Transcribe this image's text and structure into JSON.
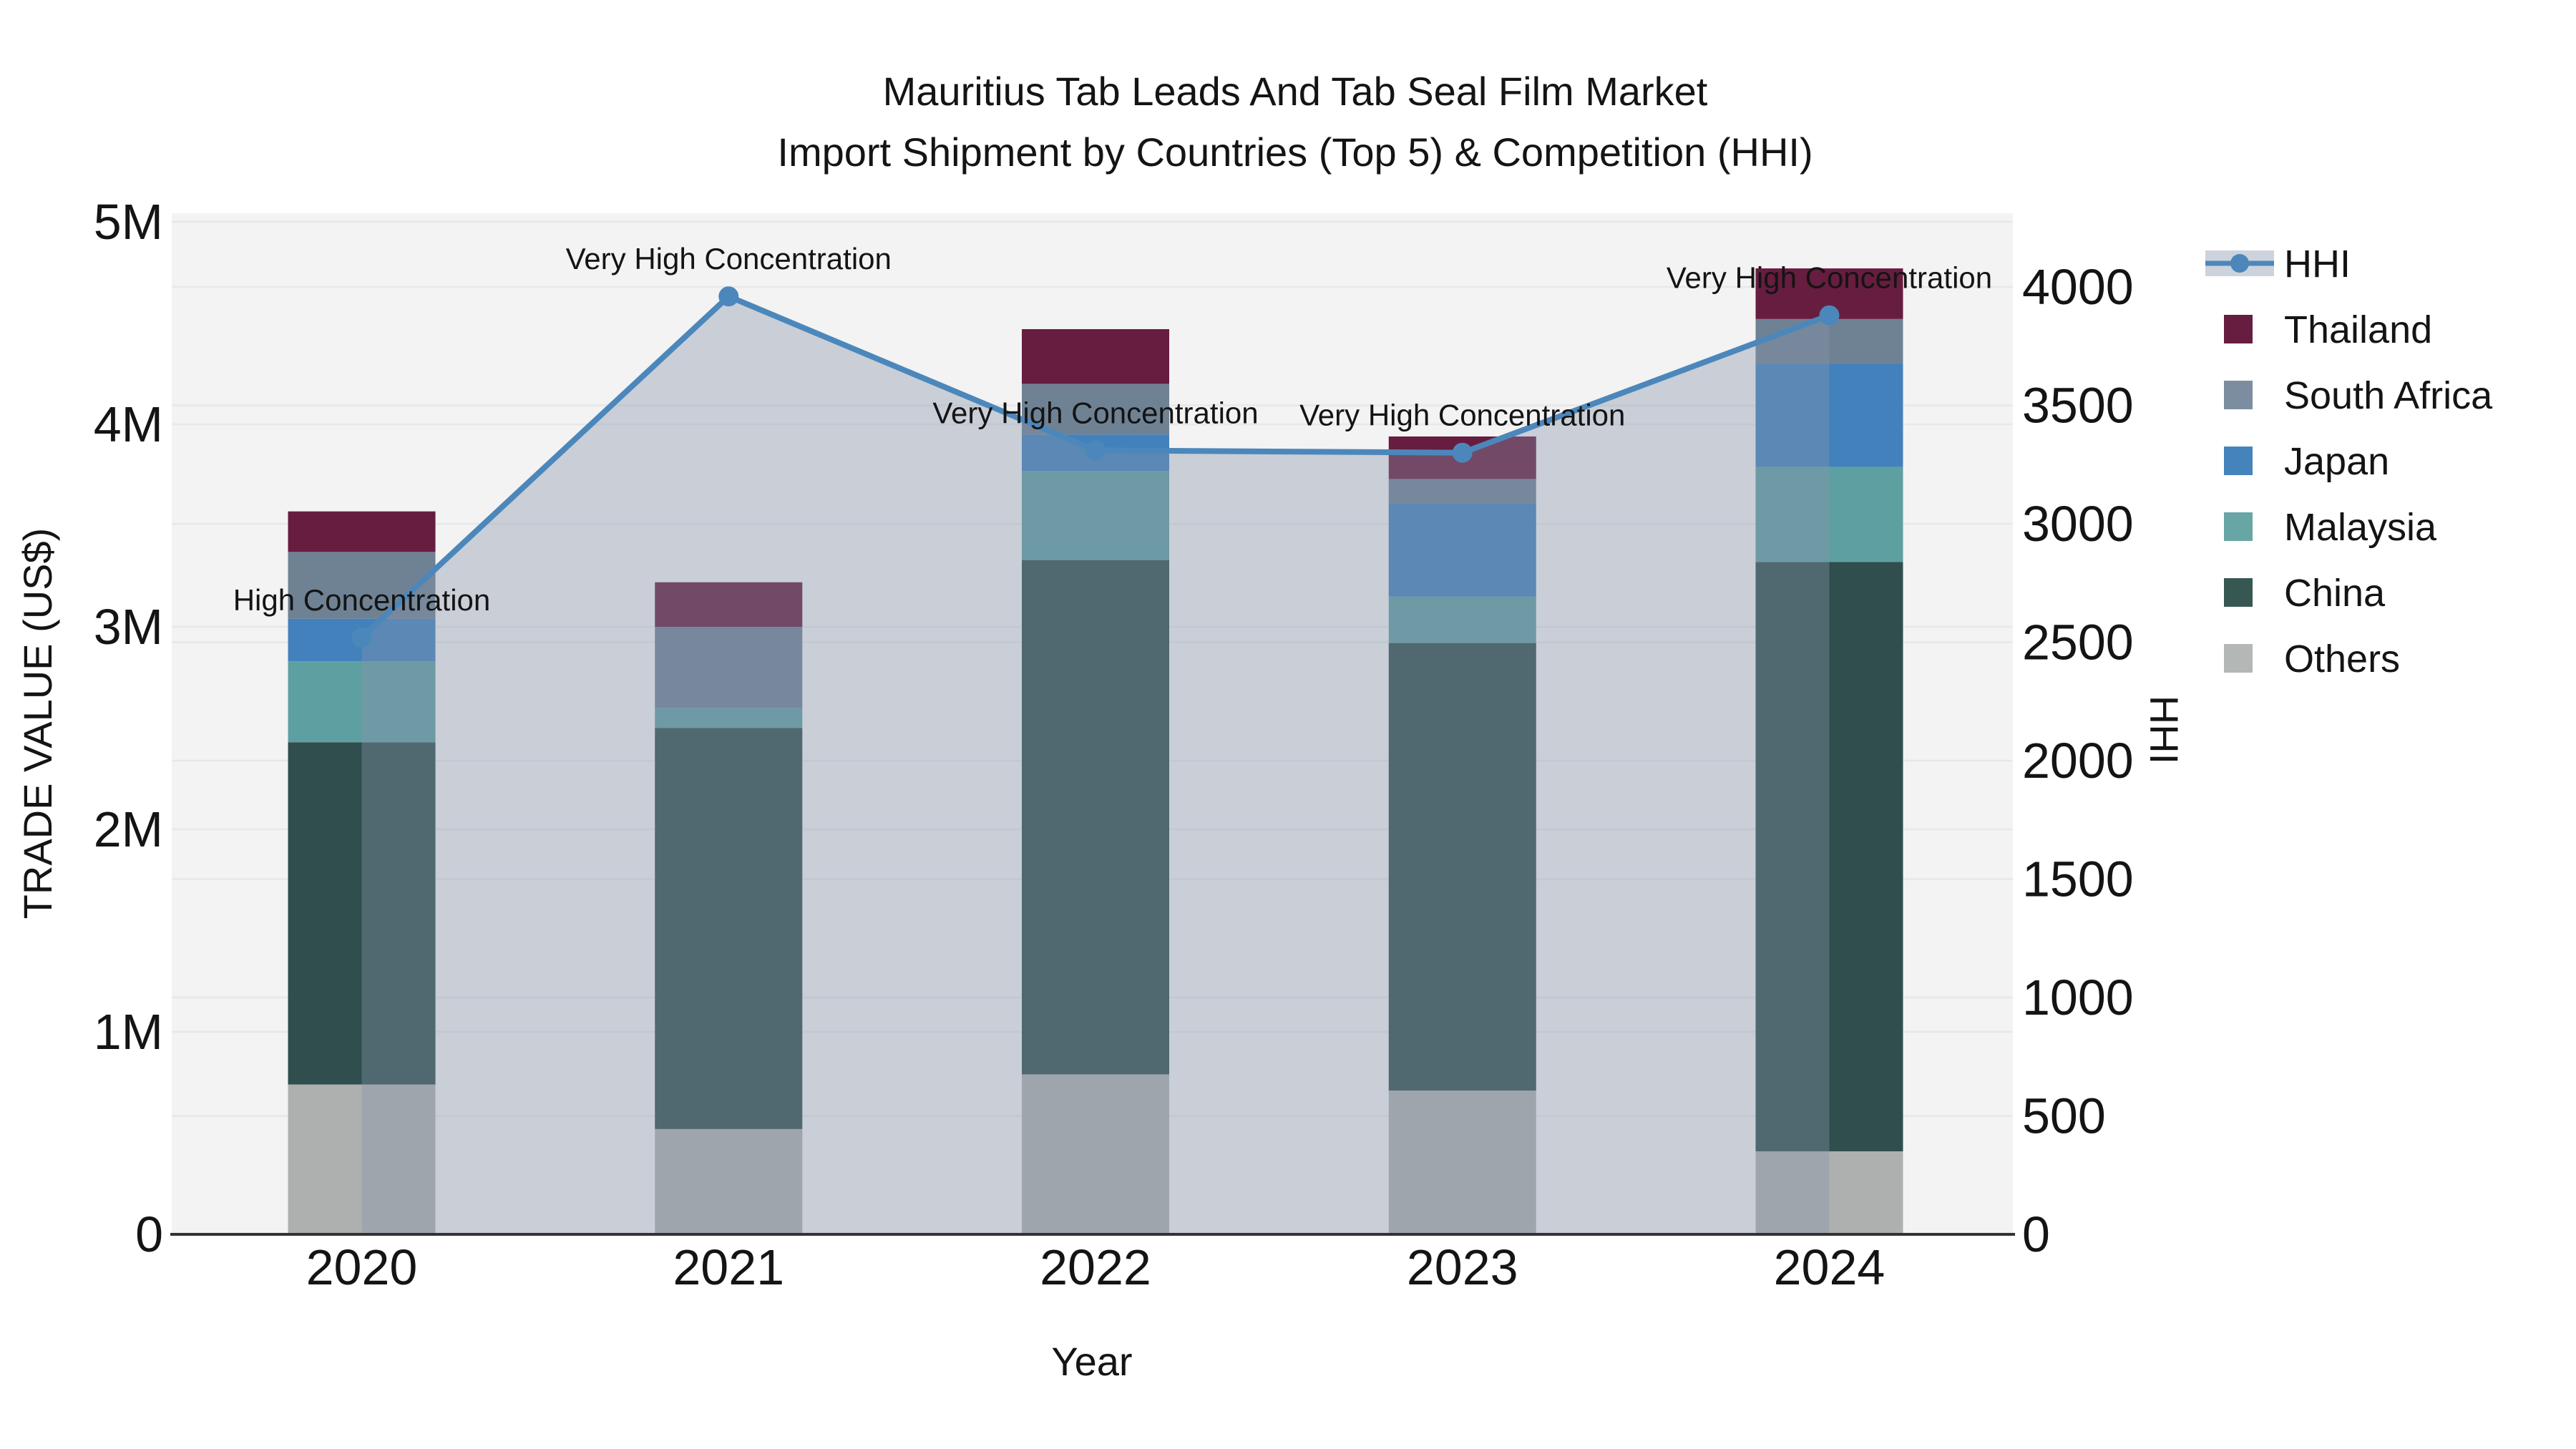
{
  "title": {
    "line1": "Mauritius Tab Leads And Tab Seal Film Market",
    "line2": "Import Shipment by Countries (Top 5) & Competition (HHI)"
  },
  "chart_data": {
    "type": "bar+line",
    "subtype": "stacked vertical bars (left axis) with HHI line + translucent area fill (right axis)",
    "categories": [
      "2020",
      "2021",
      "2022",
      "2023",
      "2024"
    ],
    "bar_value_unit": "US$ (trade value)",
    "series": [
      {
        "name": "Others",
        "color": "#adb0af",
        "values": [
          740000,
          520000,
          790000,
          710000,
          410000
        ]
      },
      {
        "name": "China",
        "color": "#2f4e4d",
        "values": [
          1690000,
          1980000,
          2540000,
          2210000,
          2910000
        ]
      },
      {
        "name": "Malaysia",
        "color": "#5e9fa2",
        "values": [
          400000,
          100000,
          440000,
          230000,
          470000
        ]
      },
      {
        "name": "Japan",
        "color": "#4281bb",
        "values": [
          210000,
          0,
          180000,
          460000,
          510000
        ]
      },
      {
        "name": "South Africa",
        "color": "#6f8294",
        "values": [
          330000,
          400000,
          250000,
          120000,
          220000
        ]
      },
      {
        "name": "Thailand",
        "color": "#671d3f",
        "values": [
          200000,
          220000,
          270000,
          210000,
          250000
        ]
      }
    ],
    "line_series": {
      "name": "HHI",
      "axis": "right",
      "color": "#4c87bb",
      "area_fill": "rgba(133,146,170,0.38)",
      "values": [
        2520,
        3960,
        3310,
        3300,
        3880
      ]
    },
    "annotations": [
      {
        "category": "2020",
        "text": "High Concentration"
      },
      {
        "category": "2021",
        "text": "Very High Concentration"
      },
      {
        "category": "2022",
        "text": "Very High Concentration"
      },
      {
        "category": "2023",
        "text": "Very High Concentration"
      },
      {
        "category": "2024",
        "text": "Very High Concentration"
      }
    ],
    "axes": {
      "x_title": "Year",
      "y_left_title": "TRADE VALUE (US$)",
      "y_right_title": "HHI",
      "y_left_ticks": [
        {
          "v": 0,
          "label": "0"
        },
        {
          "v": 1000000,
          "label": "1M"
        },
        {
          "v": 2000000,
          "label": "2M"
        },
        {
          "v": 3000000,
          "label": "3M"
        },
        {
          "v": 4000000,
          "label": "4M"
        },
        {
          "v": 5000000,
          "label": "5M"
        }
      ],
      "y_right_ticks": [
        0,
        500,
        1000,
        1500,
        2000,
        2500,
        3000,
        3500,
        4000
      ],
      "y_left_range": [
        0,
        5050000
      ],
      "y_right_range": [
        0,
        4315
      ],
      "grid": true,
      "legend_position": "right"
    }
  },
  "legend": {
    "items": [
      {
        "label": "HHI",
        "type": "line",
        "color": "#4c87bb",
        "band_color": "#ccd3dc"
      },
      {
        "label": "Thailand",
        "type": "swatch",
        "color": "#671d3f"
      },
      {
        "label": "South Africa",
        "type": "swatch",
        "color": "#7d8da0"
      },
      {
        "label": "Japan",
        "type": "swatch",
        "color": "#4583bd"
      },
      {
        "label": "Malaysia",
        "type": "swatch",
        "color": "#68a5a5"
      },
      {
        "label": "China",
        "type": "swatch",
        "color": "#375753"
      },
      {
        "label": "Others",
        "type": "swatch",
        "color": "#b3b7b6"
      }
    ]
  },
  "colors": {
    "figure_bg": "#ffffff",
    "plot_bg": "#f3f3f3",
    "gridline": "#e6e8e9",
    "axis_line": "#333333",
    "text": "#141414"
  }
}
